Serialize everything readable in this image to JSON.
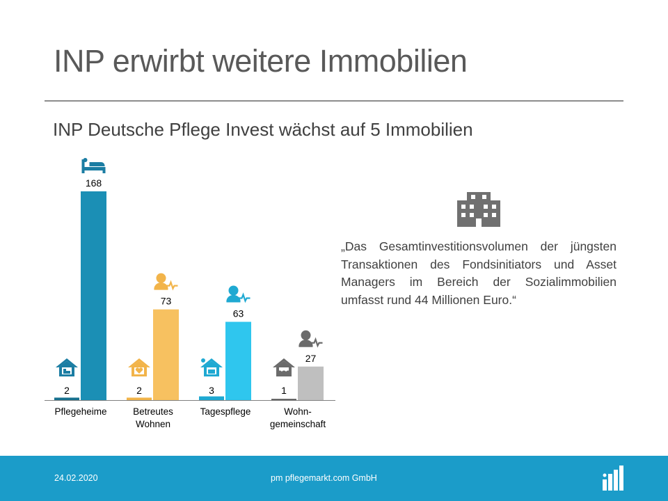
{
  "slide": {
    "title": "INP erwirbt weitere Immobilien",
    "subtitle": "INP Deutsche Pflege Invest wächst auf 5 Immobilien",
    "quote": "„Das Gesamtinvestitionsvolumen der jüngsten Transaktionen des Fondsinitiators und Asset Managers im Bereich der Sozialimmobilien umfasst rund 44 Millionen Euro.“",
    "quote_icon": "office-building-icon"
  },
  "footer": {
    "date": "24.02.2020",
    "company": "pm pflegemarkt.com GmbH",
    "logo_icon": "pflegemarkt-logo-icon",
    "background": "#1b9cc9"
  },
  "chart_data": {
    "type": "bar",
    "categories": [
      {
        "lines": [
          "Pflegeheime"
        ]
      },
      {
        "lines": [
          "Betreutes",
          "Wohnen"
        ]
      },
      {
        "lines": [
          "Tagespflege"
        ]
      },
      {
        "lines": [
          "Wohn-",
          "gemeinschaft"
        ]
      }
    ],
    "groups": [
      {
        "small": 2,
        "large": 168,
        "color": "#1b8fb5",
        "small_color": "#17718f",
        "small_icon": "house-bed-icon",
        "large_icon": "bed-icon"
      },
      {
        "small": 2,
        "large": 73,
        "color": "#f7c160",
        "small_color": "#f2b44a",
        "small_icon": "house-heart-icon",
        "large_icon": "person-pulse-icon"
      },
      {
        "small": 3,
        "large": 63,
        "color": "#2fc6ee",
        "small_color": "#1fa9d2",
        "small_icon": "house-sun-icon",
        "large_icon": "person-pulse-icon"
      },
      {
        "small": 1,
        "large": 27,
        "color": "#bfbfbf",
        "small_color": "#5a5a5a",
        "small_icon": "house-people-icon",
        "large_icon": "person-pulse-icon"
      }
    ],
    "icon_colors": [
      "#1b7da3",
      "#f2b44a",
      "#1fa9d2",
      "#6b6b6b"
    ],
    "ylim": [
      0,
      168
    ],
    "grid": false,
    "legend": "none"
  }
}
